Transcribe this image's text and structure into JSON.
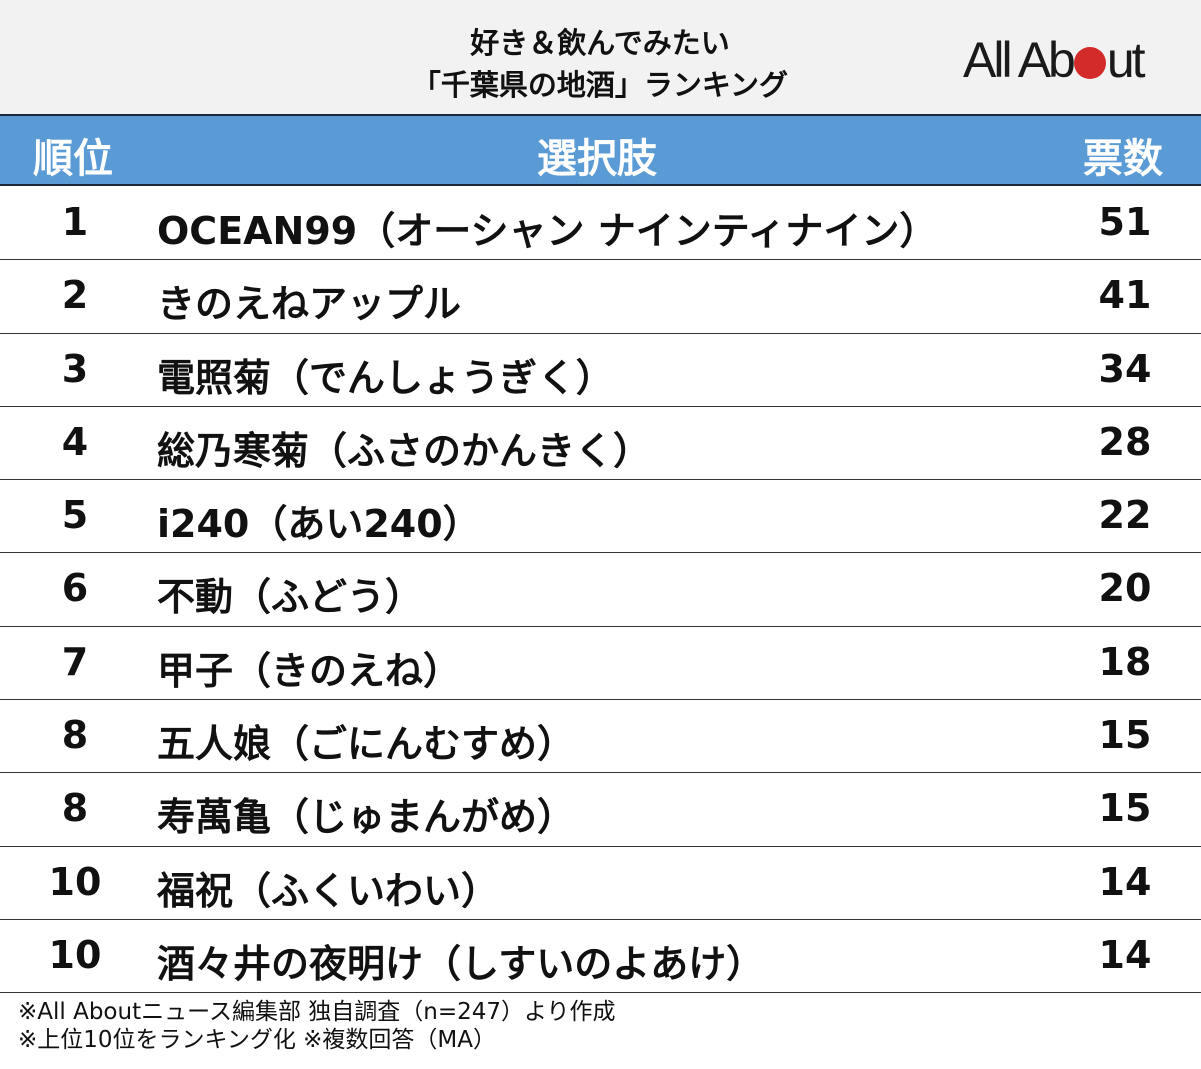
{
  "title": {
    "line1": "好き＆飲んでみたい",
    "line2": "「千葉県の地酒」ランキング"
  },
  "logo": {
    "text_before": "All Ab",
    "text_after": "ut",
    "full": "All About",
    "dot_color": "#d32a2a"
  },
  "colors": {
    "header_band": "#5b9bd5",
    "title_band": "#f2f2f2"
  },
  "columns": {
    "rank": "順位",
    "choice": "選択肢",
    "votes": "票数"
  },
  "rows": [
    {
      "rank": "1",
      "name": "OCEAN99（オーシャン ナインティナイン）",
      "votes": "51"
    },
    {
      "rank": "2",
      "name": "きのえねアップル",
      "votes": "41"
    },
    {
      "rank": "3",
      "name": "電照菊（でんしょうぎく）",
      "votes": "34"
    },
    {
      "rank": "4",
      "name": "総乃寒菊（ふさのかんきく）",
      "votes": "28"
    },
    {
      "rank": "5",
      "name": "i240（あい240）",
      "votes": "22"
    },
    {
      "rank": "6",
      "name": "不動（ふどう）",
      "votes": "20"
    },
    {
      "rank": "7",
      "name": "甲子（きのえね）",
      "votes": "18"
    },
    {
      "rank": "8",
      "name": "五人娘（ごにんむすめ）",
      "votes": "15"
    },
    {
      "rank": "8",
      "name": "寿萬亀（じゅまんがめ）",
      "votes": "15"
    },
    {
      "rank": "10",
      "name": "福祝（ふくいわい）",
      "votes": "14"
    },
    {
      "rank": "10",
      "name": "酒々井の夜明け（しすいのよあけ）",
      "votes": "14"
    }
  ],
  "footer": {
    "line1": "※All Aboutニュース編集部 独自調査（n=247）より作成",
    "line2": "※上位10位をランキング化 ※複数回答（MA）"
  }
}
